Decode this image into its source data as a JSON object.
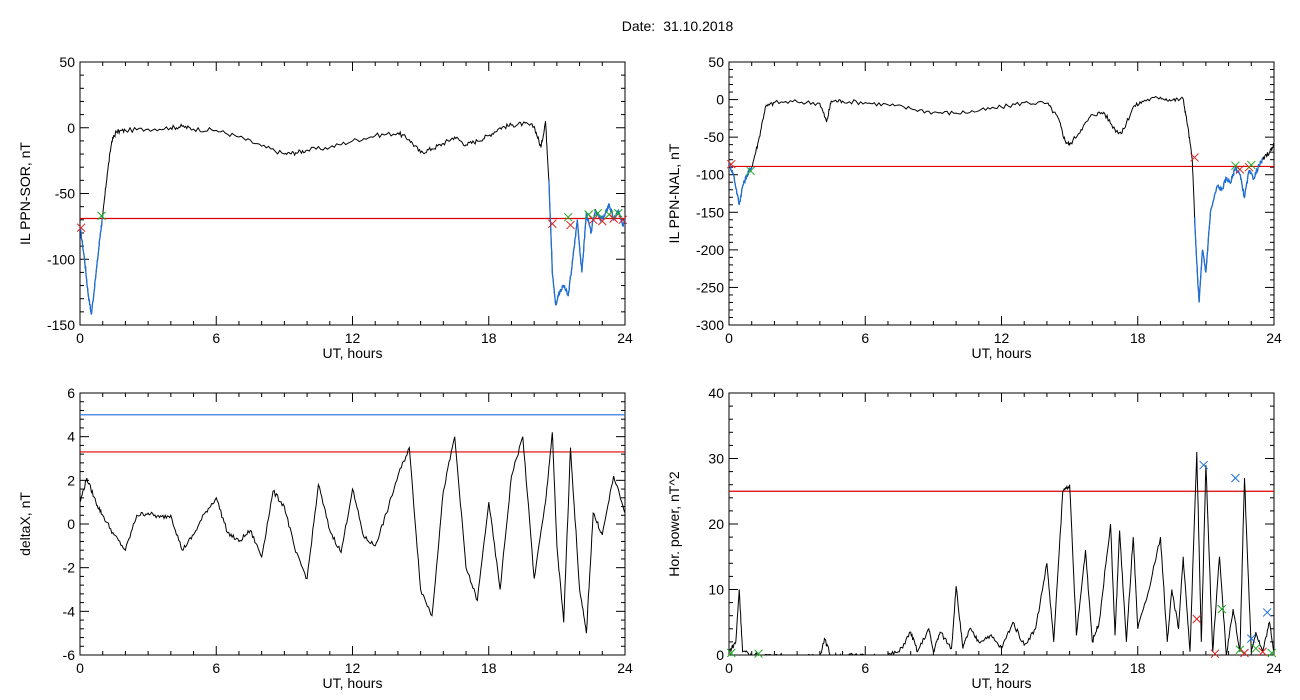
{
  "page": {
    "date_label": "Date:",
    "date_value": "31.10.2018"
  },
  "colors": {
    "trace": "#000000",
    "threshold_red": "#dd0000",
    "threshold_blue": "#1f6fd9",
    "segment_blue": "#1f6fd9",
    "marker_red": "#dd2222",
    "marker_green": "#22aa22",
    "marker_blue": "#1f6fd9"
  },
  "chart_data": [
    {
      "id": "sor",
      "type": "line",
      "xlabel": "UT, hours",
      "ylabel": "IL PPN-SOR, nT",
      "xlim": [
        0,
        24
      ],
      "ylim": [
        -150,
        50
      ],
      "xticks": [
        "0",
        "6",
        "12",
        "18",
        "24"
      ],
      "yticks": [
        "-150",
        "-100",
        "-50",
        "0",
        "50"
      ],
      "grid": false,
      "series": [
        {
          "x": [
            0,
            0.2,
            0.35,
            0.5,
            0.7,
            0.9,
            1.0,
            1.2,
            1.4,
            1.6,
            2.0,
            3.0,
            4.0,
            4.5,
            5.0,
            6.0,
            7.0,
            8.0,
            9.0,
            9.5,
            10.0,
            11.0,
            12.0,
            13.0,
            14.0,
            14.5,
            15.0,
            15.5,
            16.0,
            16.5,
            17.0,
            17.5,
            18.0,
            18.5,
            19.0,
            19.5,
            20.0,
            20.3,
            20.5,
            20.65,
            20.8,
            20.95,
            21.1,
            21.3,
            21.5,
            21.7,
            21.9,
            22.1,
            22.3,
            22.5,
            22.7,
            22.9,
            23.1,
            23.3,
            23.5,
            23.7,
            23.9,
            24.0
          ],
          "y": [
            -75,
            -100,
            -125,
            -142,
            -112,
            -80,
            -67,
            -35,
            -10,
            -3,
            -2,
            -1,
            0,
            1,
            -1,
            -2,
            -7,
            -14,
            -20,
            -19,
            -17,
            -15,
            -10,
            -6,
            -4,
            -9,
            -19,
            -16,
            -12,
            -7,
            -13,
            -10,
            -6,
            0,
            2,
            3,
            1,
            -15,
            5,
            -40,
            -110,
            -135,
            -125,
            -120,
            -128,
            -100,
            -70,
            -110,
            -65,
            -80,
            -62,
            -70,
            -67,
            -58,
            -70,
            -63,
            -75,
            -68
          ]
        }
      ],
      "blue_segments": [
        [
          0,
          1.0
        ],
        [
          20.65,
          24
        ]
      ],
      "thresholds": [
        {
          "value": -69,
          "color": "red"
        }
      ],
      "markers": [
        {
          "x": 0.05,
          "y": -76,
          "color": "red"
        },
        {
          "x": 0.95,
          "y": -67,
          "color": "green"
        },
        {
          "x": 20.8,
          "y": -73,
          "color": "red"
        },
        {
          "x": 21.5,
          "y": -68,
          "color": "green"
        },
        {
          "x": 21.6,
          "y": -74,
          "color": "red"
        },
        {
          "x": 22.4,
          "y": -66,
          "color": "green"
        },
        {
          "x": 22.6,
          "y": -70,
          "color": "red"
        },
        {
          "x": 22.8,
          "y": -65,
          "color": "green"
        },
        {
          "x": 23.0,
          "y": -71,
          "color": "red"
        },
        {
          "x": 23.3,
          "y": -66,
          "color": "green"
        },
        {
          "x": 23.5,
          "y": -69,
          "color": "red"
        },
        {
          "x": 23.7,
          "y": -65,
          "color": "green"
        },
        {
          "x": 23.9,
          "y": -70,
          "color": "red"
        }
      ]
    },
    {
      "id": "nal",
      "type": "line",
      "xlabel": "UT, hours",
      "ylabel": "IL PPN-NAL, nT",
      "xlim": [
        0,
        24
      ],
      "ylim": [
        -300,
        50
      ],
      "xticks": [
        "0",
        "6",
        "12",
        "18",
        "24"
      ],
      "yticks": [
        "-300",
        "-250",
        "-200",
        "-150",
        "-100",
        "-50",
        "0",
        "50"
      ],
      "grid": false,
      "series": [
        {
          "x": [
            0,
            0.2,
            0.45,
            0.6,
            0.8,
            1.0,
            1.3,
            1.6,
            2.0,
            3.0,
            4.0,
            4.3,
            4.5,
            5.0,
            6.0,
            7.0,
            8.0,
            9.0,
            10.0,
            11.0,
            12.0,
            13.0,
            14.0,
            14.5,
            14.8,
            15.0,
            15.5,
            16.0,
            16.5,
            17.0,
            17.3,
            17.8,
            18.3,
            19.0,
            19.5,
            20.0,
            20.2,
            20.4,
            20.55,
            20.7,
            20.85,
            21.0,
            21.2,
            21.5,
            21.7,
            21.9,
            22.1,
            22.3,
            22.5,
            22.7,
            22.9,
            23.1,
            23.3,
            23.5,
            23.8,
            24.0
          ],
          "y": [
            -85,
            -100,
            -140,
            -115,
            -100,
            -90,
            -55,
            -10,
            -4,
            -3,
            -5,
            -30,
            -2,
            -2,
            -4,
            -7,
            -12,
            -17,
            -18,
            -15,
            -10,
            -4,
            -5,
            -25,
            -55,
            -60,
            -40,
            -20,
            -17,
            -40,
            -45,
            -10,
            -1,
            3,
            -1,
            1,
            -35,
            -80,
            -190,
            -270,
            -200,
            -230,
            -150,
            -115,
            -120,
            -105,
            -110,
            -90,
            -100,
            -130,
            -95,
            -105,
            -90,
            -80,
            -70,
            -60
          ]
        }
      ],
      "blue_segments": [
        [
          0,
          1.0
        ],
        [
          20.5,
          23.5
        ]
      ],
      "thresholds": [
        {
          "value": -89,
          "color": "red"
        }
      ],
      "markers": [
        {
          "x": 0.1,
          "y": -86,
          "color": "red"
        },
        {
          "x": 0.95,
          "y": -95,
          "color": "green"
        },
        {
          "x": 20.5,
          "y": -77,
          "color": "red"
        },
        {
          "x": 22.3,
          "y": -88,
          "color": "green"
        },
        {
          "x": 22.5,
          "y": -93,
          "color": "red"
        },
        {
          "x": 22.9,
          "y": -90,
          "color": "red"
        },
        {
          "x": 23.0,
          "y": -87,
          "color": "green"
        }
      ]
    },
    {
      "id": "deltax",
      "type": "line",
      "xlabel": "UT, hours",
      "ylabel": "deltaX, nT",
      "xlim": [
        0,
        24
      ],
      "ylim": [
        -6,
        6
      ],
      "xticks": [
        "0",
        "6",
        "12",
        "18",
        "24"
      ],
      "yticks": [
        "-6",
        "-4",
        "-2",
        "0",
        "2",
        "4",
        "6"
      ],
      "grid": false,
      "series": [
        {
          "x": [
            0,
            0.3,
            0.7,
            1.0,
            1.5,
            2.0,
            2.5,
            3.0,
            3.5,
            4.0,
            4.5,
            5.0,
            5.5,
            6.0,
            6.5,
            7.0,
            7.5,
            8.0,
            8.5,
            9.0,
            9.5,
            10.0,
            10.5,
            11.0,
            11.5,
            12.0,
            12.5,
            13.0,
            13.5,
            14.0,
            14.5,
            15.0,
            15.5,
            16.0,
            16.5,
            17.0,
            17.5,
            18.0,
            18.5,
            19.0,
            19.5,
            20.0,
            20.5,
            20.8,
            21.0,
            21.3,
            21.6,
            22.0,
            22.3,
            22.6,
            23.0,
            23.5,
            24.0
          ],
          "y": [
            1.0,
            2.1,
            1.0,
            0.4,
            -0.5,
            -1.2,
            0.4,
            0.5,
            0.3,
            0.4,
            -1.2,
            -0.5,
            0.5,
            1.2,
            -0.4,
            -0.8,
            -0.3,
            -1.5,
            1.5,
            0.8,
            -1.3,
            -2.5,
            1.8,
            -0.3,
            -1.3,
            1.6,
            -0.6,
            -1.0,
            0.5,
            2.2,
            3.5,
            -3.0,
            -4.2,
            1.5,
            4.0,
            -2.0,
            -3.5,
            1.0,
            -3.0,
            2.2,
            4.0,
            -2.5,
            1.0,
            4.2,
            -1.0,
            -4.5,
            3.5,
            -3.0,
            -5.0,
            0.5,
            -0.5,
            2.2,
            0.5
          ]
        }
      ],
      "thresholds": [
        {
          "value": 5.0,
          "color": "blue"
        },
        {
          "value": 3.3,
          "color": "red"
        }
      ],
      "markers": []
    },
    {
      "id": "power",
      "type": "line",
      "xlabel": "UT, hours",
      "ylabel": "Hor. power, nT^2",
      "xlim": [
        0,
        24
      ],
      "ylim": [
        0,
        40
      ],
      "xticks": [
        "0",
        "6",
        "12",
        "18",
        "24"
      ],
      "yticks": [
        "0",
        "10",
        "20",
        "30",
        "40"
      ],
      "grid": false,
      "series": [
        {
          "x": [
            0,
            0.3,
            0.45,
            0.6,
            1.0,
            2.0,
            3.0,
            4.0,
            4.2,
            4.5,
            5.0,
            6.0,
            7.0,
            7.5,
            8.0,
            8.3,
            8.8,
            9.0,
            9.3,
            9.8,
            10.0,
            10.3,
            10.6,
            11.0,
            11.5,
            12.0,
            12.5,
            13.0,
            13.5,
            14.0,
            14.3,
            14.7,
            15.0,
            15.3,
            15.7,
            16.0,
            16.3,
            16.8,
            17.0,
            17.2,
            17.5,
            17.8,
            18.0,
            18.5,
            19.0,
            19.3,
            19.5,
            19.8,
            20.0,
            20.3,
            20.6,
            20.8,
            21.0,
            21.3,
            21.6,
            21.9,
            22.2,
            22.5,
            22.7,
            23.0,
            23.2,
            23.5,
            23.8,
            24.0
          ],
          "y": [
            0.5,
            2.0,
            10.0,
            0.5,
            0.0,
            0.0,
            -0.3,
            -0.2,
            2.5,
            -0.2,
            0.0,
            -0.2,
            0.0,
            0.5,
            3.5,
            0.5,
            4.0,
            0.5,
            3.5,
            1.0,
            10.5,
            1.0,
            4.0,
            2.0,
            3.0,
            1.0,
            5.0,
            1.5,
            4.0,
            14.0,
            2.0,
            25.0,
            26.0,
            3.0,
            16.0,
            2.0,
            5.0,
            20.0,
            3.0,
            19.0,
            2.0,
            18.0,
            4.0,
            10.0,
            18.0,
            2.0,
            10.0,
            4.0,
            15.0,
            0.5,
            31.0,
            2.0,
            29.0,
            0.5,
            15.0,
            0.0,
            7.0,
            0.5,
            27.0,
            0.5,
            3.5,
            0.5,
            5.0,
            0.5
          ]
        }
      ],
      "thresholds": [
        {
          "value": 25.0,
          "color": "red"
        }
      ],
      "markers": [
        {
          "x": 0.1,
          "y": 0.3,
          "color": "green"
        },
        {
          "x": 1.3,
          "y": 0.2,
          "color": "green"
        },
        {
          "x": 20.6,
          "y": 5.5,
          "color": "red"
        },
        {
          "x": 20.9,
          "y": 29.0,
          "color": "blue"
        },
        {
          "x": 21.4,
          "y": 0.2,
          "color": "red"
        },
        {
          "x": 21.7,
          "y": 7.0,
          "color": "green"
        },
        {
          "x": 22.3,
          "y": 27.0,
          "color": "blue"
        },
        {
          "x": 22.5,
          "y": 0.8,
          "color": "green"
        },
        {
          "x": 22.7,
          "y": 0.3,
          "color": "red"
        },
        {
          "x": 23.0,
          "y": 2.5,
          "color": "blue"
        },
        {
          "x": 23.2,
          "y": 1.0,
          "color": "green"
        },
        {
          "x": 23.5,
          "y": 0.5,
          "color": "red"
        },
        {
          "x": 23.7,
          "y": 6.5,
          "color": "blue"
        },
        {
          "x": 23.9,
          "y": 0.3,
          "color": "green"
        }
      ]
    }
  ]
}
